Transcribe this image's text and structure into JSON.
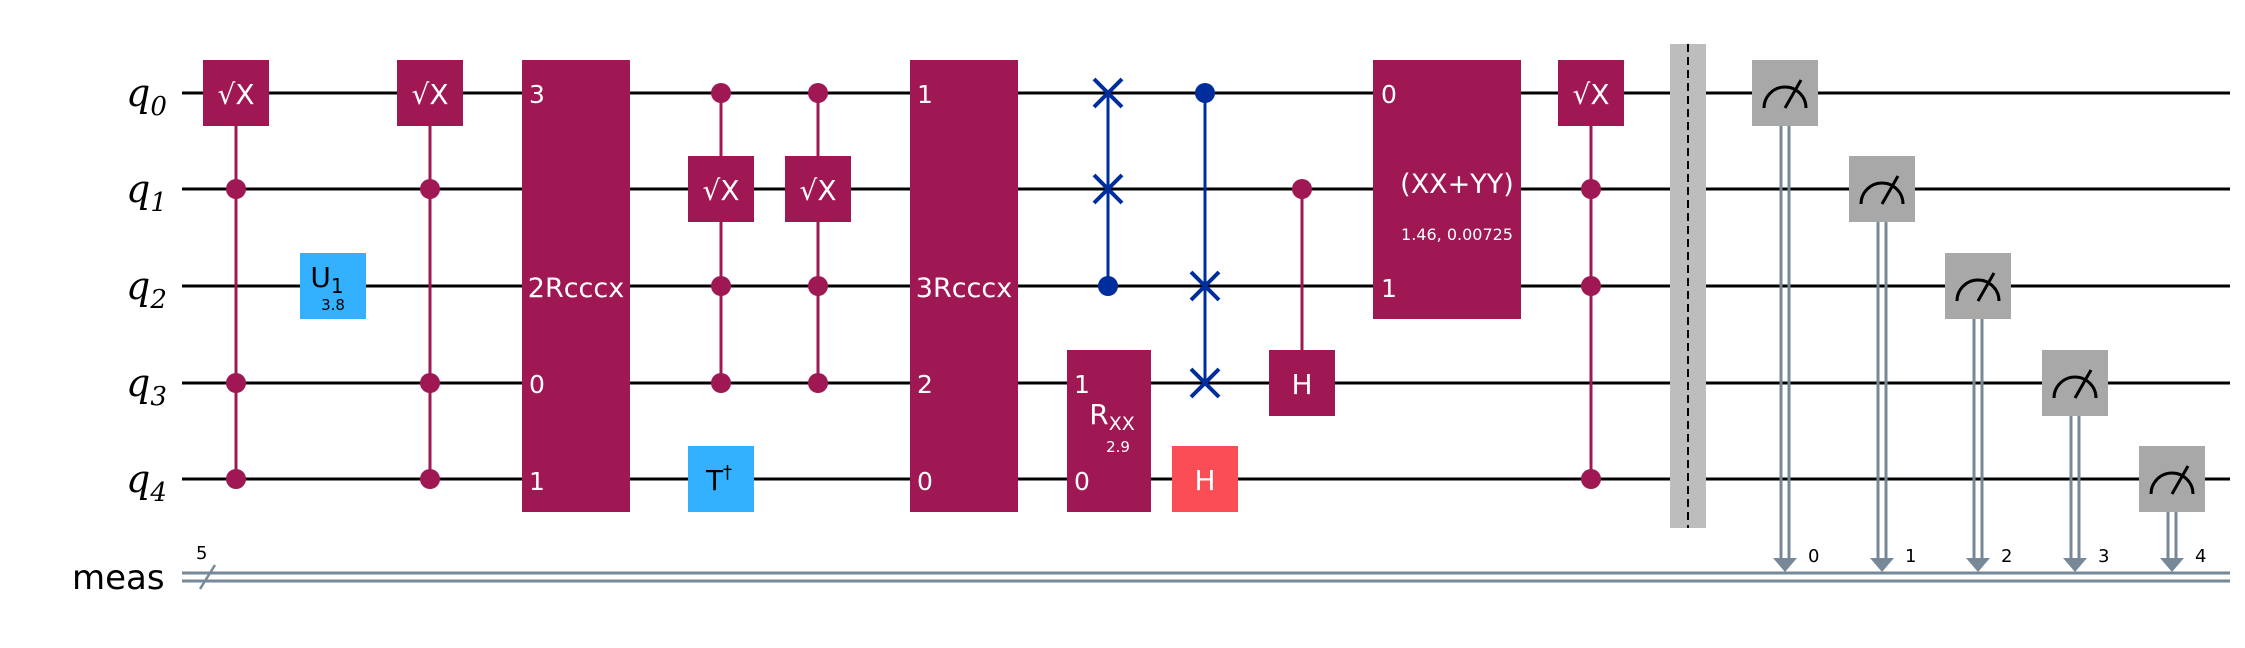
{
  "qubits": [
    {
      "label": "q",
      "index": "0"
    },
    {
      "label": "q",
      "index": "1"
    },
    {
      "label": "q",
      "index": "2"
    },
    {
      "label": "q",
      "index": "3"
    },
    {
      "label": "q",
      "index": "4"
    }
  ],
  "classical": {
    "label": "meas",
    "size": "5"
  },
  "colors": {
    "gate": "#9f1853",
    "u_gate": "#33b1ff",
    "h_red": "#fa4d56",
    "swap": "#002d9c",
    "measure": "#a8a8a8",
    "barrier": "#bdbdbd",
    "classical_wire": "#778899"
  },
  "gates": {
    "sx_label": "√X",
    "u1": {
      "label": "U",
      "sub": "1",
      "param": "3.8"
    },
    "rcccx_a": {
      "name": "2Rcccx",
      "pins": [
        "3",
        "0",
        "1"
      ]
    },
    "rcccx_b": {
      "name": "3Rcccx",
      "pins": [
        "1",
        "2",
        "0"
      ]
    },
    "tdg": {
      "label": "T",
      "sup": "†"
    },
    "rxx": {
      "label": "R",
      "sub": "XX",
      "param": "2.9",
      "pins": [
        "1",
        "0"
      ]
    },
    "h_label": "H",
    "xxyy": {
      "label": "(XX+YY)",
      "param": "1.46, 0.00725",
      "pins": [
        "0",
        "1"
      ]
    }
  },
  "measure_bits": [
    "0",
    "1",
    "2",
    "3",
    "4"
  ]
}
